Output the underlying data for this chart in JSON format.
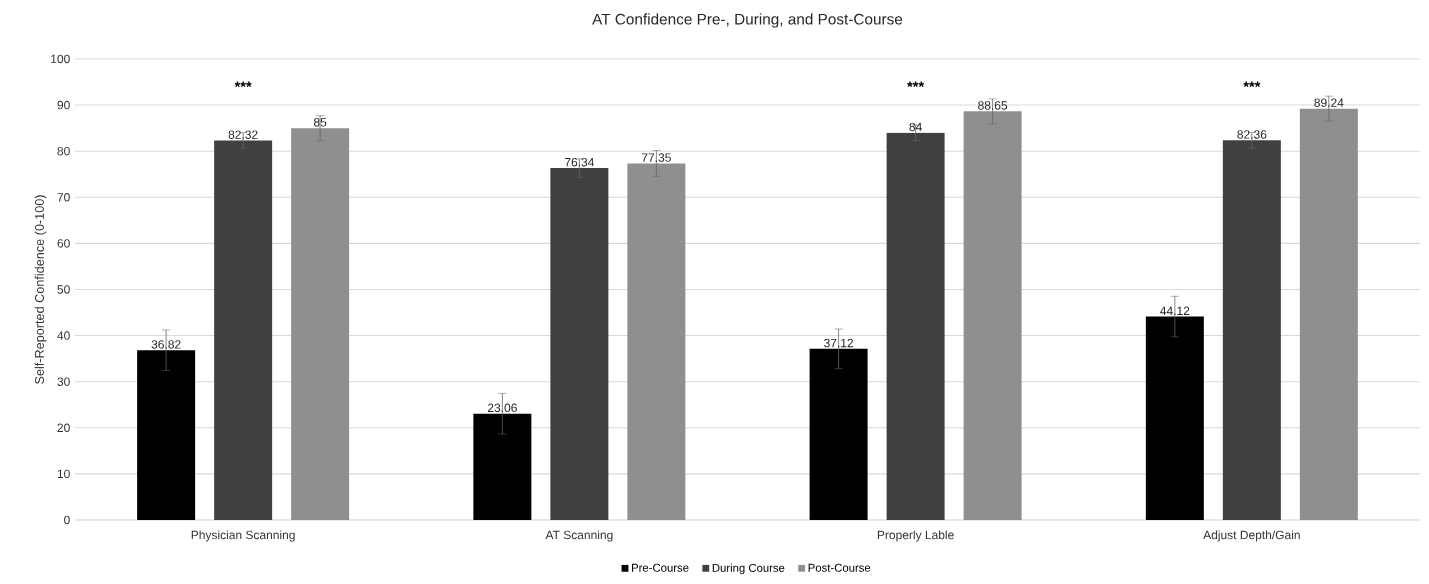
{
  "chart_data": {
    "type": "bar",
    "title": "AT Confidence Pre-, During, and Post-Course",
    "ylabel": "Self-Reported Confidence (0-100)",
    "categories": [
      "Physician Scanning",
      "AT Scanning",
      "Properly Lable",
      "Adjust Depth/Gain"
    ],
    "series": [
      {
        "name": "Pre-Course",
        "color": "#000000",
        "values": [
          36.82,
          23.06,
          37.12,
          44.12
        ],
        "errors": [
          4.4,
          4.4,
          4.3,
          4.4
        ]
      },
      {
        "name": "During Course",
        "color": "#404040",
        "values": [
          82.32,
          76.34,
          84,
          82.36
        ],
        "errors": [
          1.7,
          2,
          1.7,
          1.7
        ]
      },
      {
        "name": "Post-Course",
        "color": "#8f8f8f",
        "values": [
          85,
          77.35,
          88.65,
          89.24
        ],
        "errors": [
          2.7,
          2.8,
          2.7,
          2.7
        ]
      }
    ],
    "ylim": [
      0,
      100
    ],
    "yticks": [
      0,
      10,
      20,
      30,
      40,
      50,
      60,
      70,
      80,
      90,
      100
    ],
    "grid": "y",
    "legend": "bottom",
    "data_labels": true,
    "annotations": [
      "***",
      "***",
      "***"
    ]
  }
}
